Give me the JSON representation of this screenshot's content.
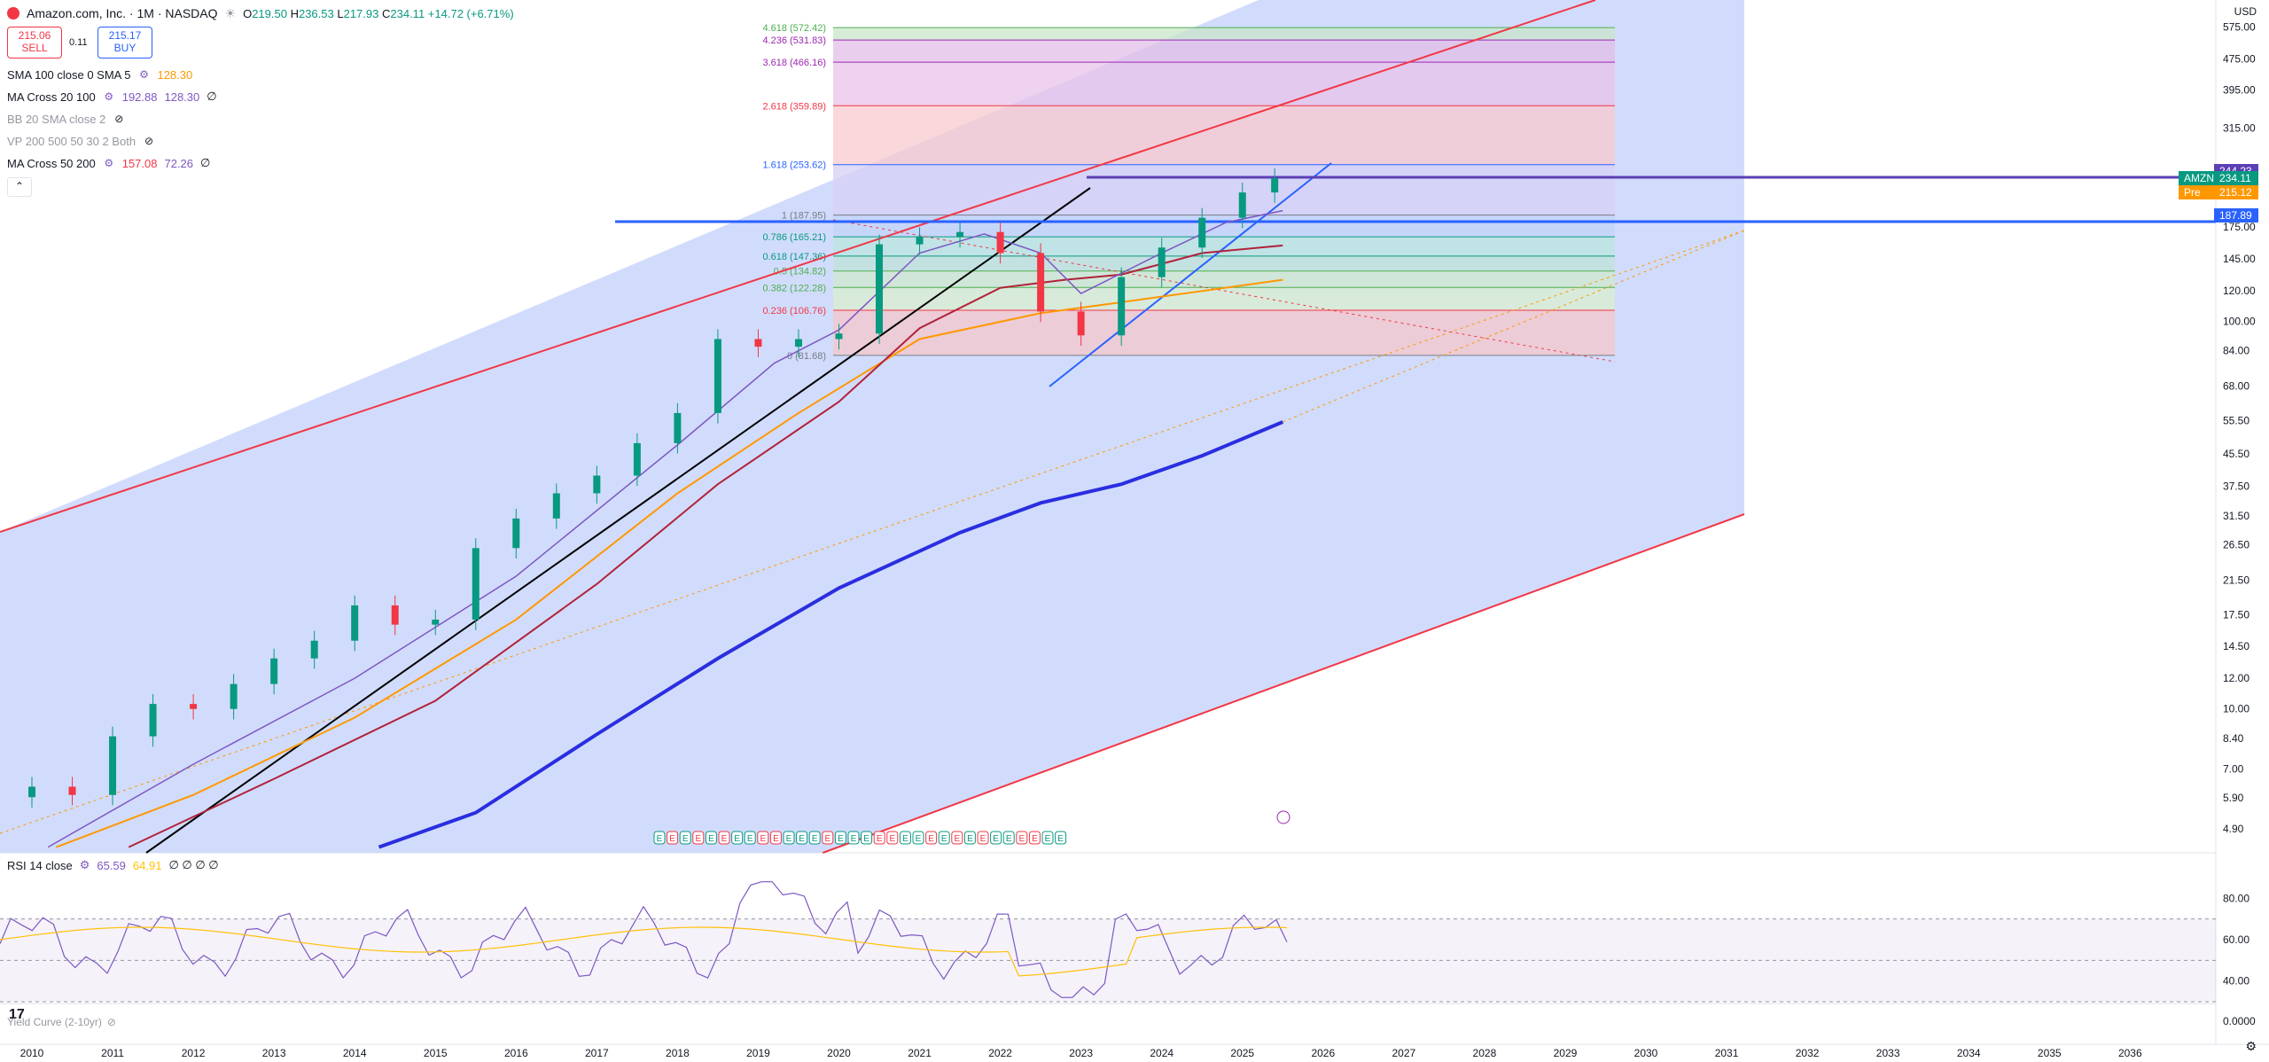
{
  "header": {
    "title": "Amazon.com, Inc. · 1M · NASDAQ",
    "o_label": "O",
    "o": "219.50",
    "h_label": "H",
    "h": "236.53",
    "l_label": "L",
    "l": "217.93",
    "c_label": "C",
    "c": "234.11",
    "change": "+14.72 (+6.71%)"
  },
  "trade": {
    "sell_price": "215.06",
    "sell_label": "SELL",
    "spread": "0.11",
    "buy_price": "215.17",
    "buy_label": "BUY"
  },
  "indicators": [
    {
      "label": "SMA 100 close 0 SMA 5",
      "values": [
        "128.30"
      ],
      "colors": [
        "#ff9800"
      ]
    },
    {
      "label": "MA Cross 20 100",
      "values": [
        "192.88",
        "128.30",
        "∅"
      ],
      "colors": [
        "#7e57c2",
        "#7e57c2",
        "#131722"
      ]
    },
    {
      "label": "BB 20 SMA close 2",
      "values": [],
      "colors": []
    },
    {
      "label": "VP 200 500 50 30 2 Both",
      "values": [],
      "colors": []
    },
    {
      "label": "MA Cross 50 200",
      "values": [
        "157.08",
        "72.26",
        "∅"
      ],
      "colors": [
        "#f23645",
        "#7e57c2",
        "#131722"
      ]
    }
  ],
  "currency": "USD",
  "price_axis": [
    "575.00",
    "475.00",
    "395.00",
    "315.00",
    "175.00",
    "145.00",
    "120.00",
    "100.00",
    "84.00",
    "68.00",
    "55.50",
    "45.50",
    "37.50",
    "31.50",
    "26.50",
    "21.50",
    "17.50",
    "14.50",
    "12.00",
    "10.00",
    "8.40",
    "7.00",
    "5.90",
    "4.90"
  ],
  "price_tags": [
    {
      "text": "244.23",
      "color": "#5b3fb5",
      "value": 244.23
    },
    {
      "text": "AMZN",
      "color": "#089981",
      "value": 234.11,
      "value_text": "234.11"
    },
    {
      "text": "Pre",
      "color": "#ff9800",
      "value": 215.12,
      "value_text": "215.12"
    },
    {
      "text": "187.89",
      "color": "#2962ff",
      "value": 187.89
    }
  ],
  "fib_levels": [
    {
      "label": "4.618 (572.42)",
      "color": "#4caf50"
    },
    {
      "label": "4.236 (531.83)",
      "color": "#9c27b0"
    },
    {
      "label": "3.618 (466.16)",
      "color": "#9c27b0"
    },
    {
      "label": "2.618 (359.89)",
      "color": "#f23645"
    },
    {
      "label": "1.618 (253.62)",
      "color": "#2962ff"
    },
    {
      "label": "1 (187.95)",
      "color": "#787b86"
    },
    {
      "label": "0.786 (165.21)",
      "color": "#089981"
    },
    {
      "label": "0.618 (147.36)",
      "color": "#089981"
    },
    {
      "label": "0.5 (134.82)",
      "color": "#4caf50"
    },
    {
      "label": "0.382 (122.28)",
      "color": "#4caf50"
    },
    {
      "label": "0.236 (106.76)",
      "color": "#f23645"
    },
    {
      "label": "0 (81.68)",
      "color": "#787b86"
    }
  ],
  "rsi": {
    "label": "RSI 14 close",
    "v1": "65.59",
    "v2": "64.91",
    "rest": "∅ ∅ ∅ ∅",
    "axis": [
      "80.00",
      "60.00",
      "40.00"
    ]
  },
  "yield": {
    "label": "Yield Curve (2-10yr)",
    "axis": "0.0000"
  },
  "time_axis": [
    "2010",
    "2011",
    "2012",
    "2013",
    "2014",
    "2015",
    "2016",
    "2017",
    "2018",
    "2019",
    "2020",
    "2021",
    "2022",
    "2023",
    "2024",
    "2025",
    "2026",
    "2027",
    "2028",
    "2029",
    "2030",
    "2031",
    "2032",
    "2033",
    "2034",
    "2035",
    "2036"
  ],
  "events_label": "E",
  "logo_text": "17",
  "colors": {
    "up": "#089981",
    "down": "#f23645",
    "channel": "#f23645",
    "fill": "#c9d6fb",
    "ma200": "#2a2ee0",
    "ma50": "#ff9800",
    "ma_red": "#b2223a",
    "ma20": "#7e57c2"
  },
  "chart_data": {
    "type": "candlestick",
    "title": "Amazon.com, Inc. · 1M · NASDAQ",
    "log_scale": true,
    "ylim": [
      4.3,
      620
    ],
    "xlim": [
      "2010",
      "2036"
    ],
    "series": [
      {
        "name": "AMZN",
        "x_years": [
          2010,
          2010.5,
          2011,
          2011.5,
          2012,
          2012.5,
          2013,
          2013.5,
          2014,
          2014.5,
          2015,
          2015.5,
          2016,
          2016.5,
          2017,
          2017.5,
          2018,
          2018.5,
          2019,
          2019.5,
          2020,
          2020.5,
          2021,
          2021.5,
          2022,
          2022.5,
          2023,
          2023.5,
          2024,
          2024.5,
          2025,
          2025.4
        ],
        "close": [
          6.3,
          6.0,
          8.5,
          10.3,
          10.0,
          11.6,
          13.5,
          15.0,
          18.5,
          16.5,
          17.0,
          26.0,
          31.0,
          36.0,
          40.0,
          48.5,
          58.0,
          90.0,
          86.0,
          90.0,
          93.0,
          158.0,
          165.0,
          170.0,
          150.0,
          106.0,
          92.0,
          130.0,
          155.0,
          185.0,
          215.0,
          234.11
        ]
      }
    ],
    "grid": false
  }
}
